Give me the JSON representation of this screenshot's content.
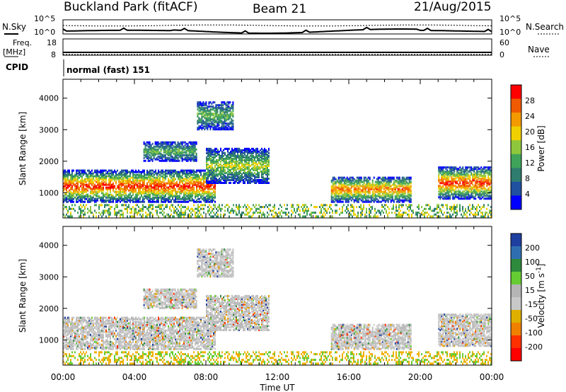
{
  "header": {
    "site": "Buckland Park (fitACF)",
    "beam": "Beam 21",
    "date": "21/Aug/2015"
  },
  "noise_panel": {
    "left_label": "N.Sky",
    "right_label": "N.Search",
    "top_tick_left": "10^5",
    "bottom_tick_left": "10^0",
    "top_tick_right": "10^5",
    "bottom_tick_right": "10^0"
  },
  "freq_panel": {
    "left_label_line1": "Freq.",
    "left_label_line2": "[MHz]",
    "left_ticks": [
      "18",
      "8"
    ],
    "right_label": "Nave",
    "right_ticks": [
      "60",
      "0"
    ]
  },
  "cpid_panel": {
    "label": "CPID",
    "text": "normal (fast) 151"
  },
  "colors": {
    "power_scale": [
      "#0000ff",
      "#2050a0",
      "#2e7d6e",
      "#3fa35a",
      "#8fc73c",
      "#f0d000",
      "#f39a00",
      "#f05a00",
      "#ff0000"
    ],
    "velocity_scale": [
      "#1f3fa0",
      "#2f6fb0",
      "#2e8a3c",
      "#66cc33",
      "#b5b5b5",
      "#c8c8c8",
      "#e0b000",
      "#f08000",
      "#ff3000",
      "#ff0000"
    ]
  },
  "chart_data": [
    {
      "type": "heatmap",
      "ylabel": "Slant Range [km]",
      "yticks": [
        "1000",
        "2000",
        "3000",
        "4000"
      ],
      "ylim": [
        200,
        4600
      ],
      "x_ticks": [
        "00:00",
        "04:00",
        "08:00",
        "12:00",
        "16:00",
        "20:00",
        "00:00"
      ],
      "colorbar": {
        "label": "Power [dB]",
        "ticks": [
          "4",
          "8",
          "12",
          "16",
          "20",
          "24",
          "28"
        ]
      },
      "echo_regions": [
        {
          "t_start": "00:00",
          "t_end": "08:30",
          "range_km": [
            700,
            1700
          ],
          "peak_db": 28
        },
        {
          "t_start": "08:00",
          "t_end": "11:30",
          "range_km": [
            1300,
            2400
          ],
          "peak_db": 16
        },
        {
          "t_start": "15:00",
          "t_end": "19:30",
          "range_km": [
            700,
            1500
          ],
          "peak_db": 24
        },
        {
          "t_start": "21:00",
          "t_end": "24:00",
          "range_km": [
            800,
            1800
          ],
          "peak_db": 28
        },
        {
          "t_start": "07:30",
          "t_end": "09:30",
          "range_km": [
            3000,
            3900
          ],
          "peak_db": 12
        },
        {
          "t_start": "04:30",
          "t_end": "07:30",
          "range_km": [
            2000,
            2600
          ],
          "peak_db": 12
        }
      ]
    },
    {
      "type": "heatmap",
      "ylabel": "Slant Range [km]",
      "yticks": [
        "1000",
        "2000",
        "3000",
        "4000"
      ],
      "ylim": [
        200,
        4600
      ],
      "xlabel": "Time UT",
      "x_ticks": [
        "00:00",
        "04:00",
        "08:00",
        "12:00",
        "16:00",
        "20:00",
        "00:00"
      ],
      "colorbar": {
        "label": "Velocity [m s^-1]",
        "ticks": [
          "200",
          "100",
          "50",
          "15",
          "-15",
          "-50",
          "-100",
          "-200"
        ]
      }
    }
  ]
}
